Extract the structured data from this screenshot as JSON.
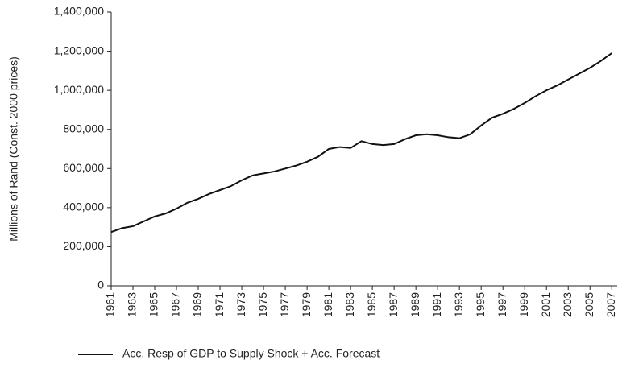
{
  "chart_data": {
    "type": "line",
    "y_label": "Millions of Rand (Const. 2000 prices)",
    "x": [
      1961,
      1962,
      1963,
      1964,
      1965,
      1966,
      1967,
      1968,
      1969,
      1970,
      1971,
      1972,
      1973,
      1974,
      1975,
      1976,
      1977,
      1978,
      1979,
      1980,
      1981,
      1982,
      1983,
      1984,
      1985,
      1986,
      1987,
      1988,
      1989,
      1990,
      1991,
      1992,
      1993,
      1994,
      1995,
      1996,
      1997,
      1998,
      1999,
      2000,
      2001,
      2002,
      2003,
      2004,
      2005,
      2006,
      2007
    ],
    "series": [
      {
        "name": "Acc. Resp of GDP to Supply Shock + Acc. Forecast",
        "color": "#111111",
        "values": [
          275000,
          295000,
          305000,
          330000,
          355000,
          370000,
          395000,
          425000,
          445000,
          470000,
          490000,
          510000,
          540000,
          565000,
          575000,
          585000,
          600000,
          615000,
          635000,
          660000,
          700000,
          710000,
          705000,
          740000,
          725000,
          720000,
          725000,
          750000,
          770000,
          775000,
          770000,
          760000,
          755000,
          775000,
          820000,
          860000,
          880000,
          905000,
          935000,
          970000,
          1000000,
          1025000,
          1055000,
          1085000,
          1115000,
          1150000,
          1190000
        ]
      }
    ],
    "xlim": [
      1961,
      2007.5
    ],
    "xticks": [
      1961,
      1963,
      1965,
      1967,
      1969,
      1971,
      1973,
      1975,
      1977,
      1979,
      1981,
      1983,
      1985,
      1987,
      1989,
      1991,
      1993,
      1995,
      1997,
      1999,
      2001,
      2003,
      2005,
      2007
    ],
    "ylim": [
      0,
      1400000
    ],
    "yticks": [
      0,
      {
        "value": 200000,
        "label": "200,000"
      },
      {
        "value": 400000,
        "label": "400,000"
      },
      {
        "value": 600000,
        "label": "600,000"
      },
      {
        "value": 800000,
        "label": "800,000"
      },
      {
        "value": 1000000,
        "label": "1,000,000"
      },
      {
        "value": 1200000,
        "label": "1,200,000"
      },
      {
        "value": 1400000,
        "label": "1,400,000"
      }
    ],
    "grid": false
  }
}
